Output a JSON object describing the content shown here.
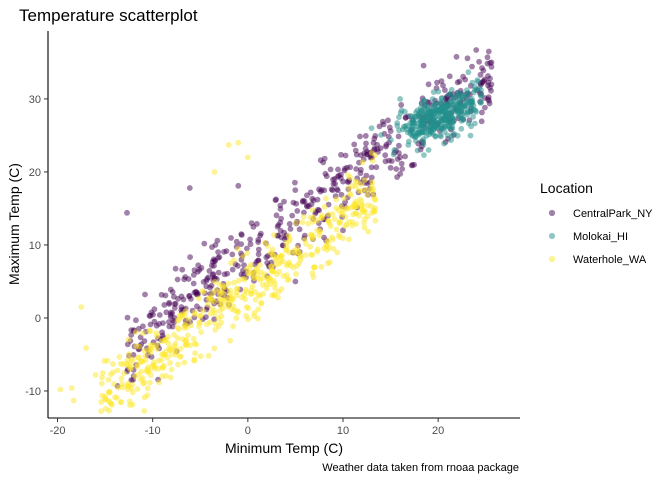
{
  "chart_data": {
    "type": "scatter",
    "title": "Temperature scatterplot",
    "xlabel": "Minimum Temp (C)",
    "ylabel": "Maximum Temp (C)",
    "caption": "Weather data taken from rnoaa package",
    "xlim": [
      -21,
      28.6
    ],
    "ylim": [
      -13.7,
      39.3
    ],
    "xticks": [
      -20,
      -10,
      0,
      10,
      20
    ],
    "yticks": [
      -10,
      0,
      10,
      20,
      30
    ],
    "xtick_labels": [
      "-20",
      "-10",
      "0",
      "10",
      "20"
    ],
    "ytick_labels": [
      "-10",
      "0",
      "10",
      "20",
      "30"
    ],
    "grid": false,
    "point_alpha": 0.5,
    "legend": {
      "title": "Location",
      "position": "right",
      "entries": [
        {
          "label": "CentralPark_NY",
          "color": "#440154"
        },
        {
          "label": "Molokai_HI",
          "color": "#21908C"
        },
        {
          "label": "Waterhole_WA",
          "color": "#FDE725"
        }
      ]
    },
    "series": [
      {
        "name": "CentralPark_NY",
        "color": "#440154",
        "cloud": {
          "x_range": [
            -12.7,
            25.6
          ],
          "slope": 0.98,
          "intercept": 8.6,
          "spread": 2.6
        },
        "points": [
          {
            "x": -12.7,
            "y": 14.4
          },
          {
            "x": -13.7,
            "y": -9.3
          },
          {
            "x": -8.1,
            "y": 3.9
          },
          {
            "x": -6.1,
            "y": 17.8
          },
          {
            "x": -3.2,
            "y": 10.6
          },
          {
            "x": -1.0,
            "y": 18.1
          },
          {
            "x": 25.6,
            "y": 35.0
          },
          {
            "x": 25.6,
            "y": 34.4
          },
          {
            "x": 24.0,
            "y": 36.7
          },
          {
            "x": 21.0,
            "y": 29.0
          },
          {
            "x": 19.0,
            "y": 32.0
          },
          {
            "x": 8.0,
            "y": 11.0
          },
          {
            "x": 10.0,
            "y": 12.0
          },
          {
            "x": 5.0,
            "y": 5.0
          }
        ]
      },
      {
        "name": "Molokai_HI",
        "color": "#21908C",
        "cloud": {
          "x_range": [
            14.0,
            24.5
          ],
          "center": [
            20.0,
            27.5
          ],
          "spread": 2.2
        },
        "points": [
          {
            "x": 13.0,
            "y": 26.0
          },
          {
            "x": 16.0,
            "y": 30.0
          },
          {
            "x": 19.0,
            "y": 23.0
          },
          {
            "x": 18.5,
            "y": 22.3
          },
          {
            "x": 21.0,
            "y": 25.0
          },
          {
            "x": 15.7,
            "y": 26.7
          },
          {
            "x": 20.0,
            "y": 31.0
          },
          {
            "x": 22.0,
            "y": 29.0
          }
        ]
      },
      {
        "name": "Waterhole_WA",
        "color": "#FDE725",
        "cloud": {
          "x_range": [
            -15.5,
            13.5
          ],
          "slope": 0.98,
          "intercept": 4.0,
          "spread": 2.4
        },
        "points": [
          {
            "x": -19.7,
            "y": -9.8
          },
          {
            "x": -18.5,
            "y": -9.6
          },
          {
            "x": -18.3,
            "y": -11.3
          },
          {
            "x": -17.0,
            "y": -4.1
          },
          {
            "x": -17.5,
            "y": 1.5
          },
          {
            "x": -16.0,
            "y": -7.8
          },
          {
            "x": -1.0,
            "y": 24.0
          },
          {
            "x": -2.0,
            "y": 23.7
          },
          {
            "x": 0.0,
            "y": 22.0
          },
          {
            "x": -3.5,
            "y": 20.0
          },
          {
            "x": 13.0,
            "y": 22.6
          },
          {
            "x": 12.0,
            "y": 17.4
          }
        ]
      }
    ]
  }
}
